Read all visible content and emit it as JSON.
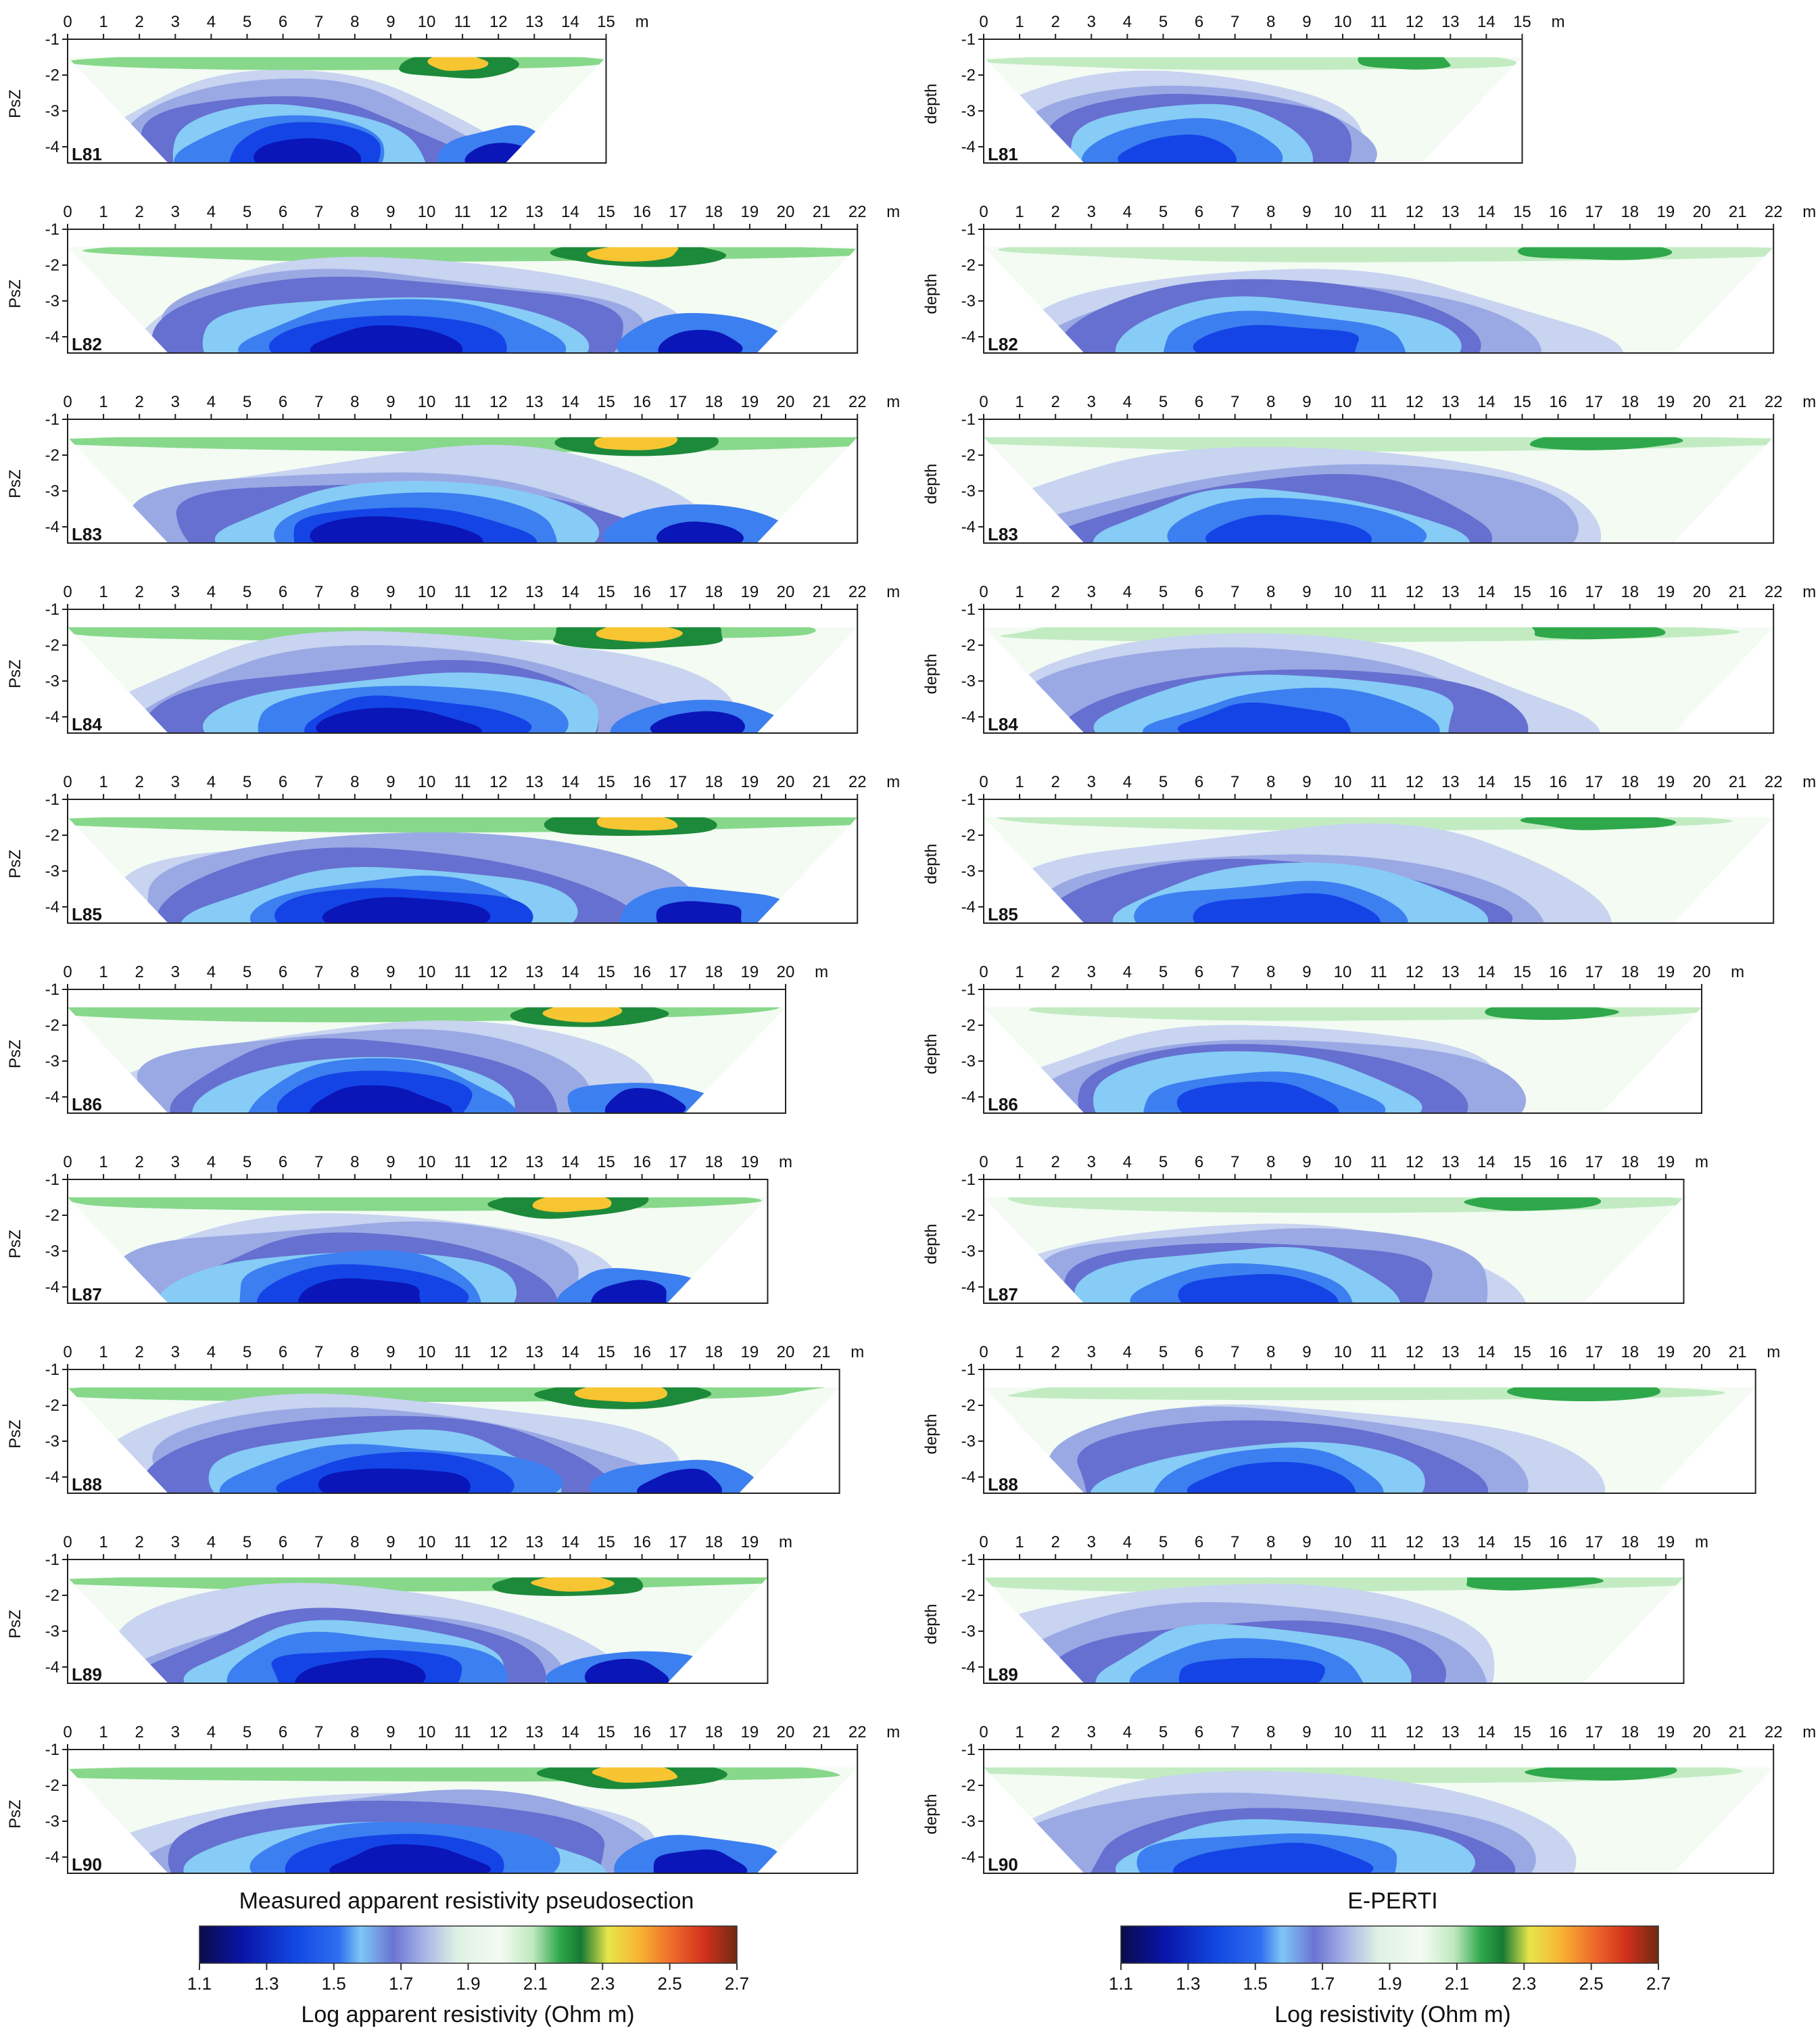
{
  "panel_titles": {
    "left": "Measured apparent resistivity pseudosection",
    "right": "E-PERTI"
  },
  "axes": {
    "left_ylabel": "PsZ",
    "right_ylabel": "depth",
    "x_unit": "m",
    "depth_ticks": [
      "-1",
      "-2",
      "-3",
      "-4"
    ]
  },
  "colorbars": {
    "left": {
      "label": "Log apparent resistivity (Ohm m)",
      "ticks": [
        "1.1",
        "1.3",
        "1.5",
        "1.7",
        "1.9",
        "2.1",
        "2.3",
        "2.5",
        "2.7"
      ]
    },
    "right": {
      "label": "Log resistivity (Ohm m)",
      "ticks": [
        "1.1",
        "1.3",
        "1.5",
        "1.7",
        "1.9",
        "2.1",
        "2.3",
        "2.5",
        "2.7"
      ]
    }
  },
  "colors": {
    "palette": [
      "#0b0b6e",
      "#0a16b8",
      "#1444e6",
      "#3c7ff0",
      "#86ccf6",
      "#6670d0",
      "#9aa9e4",
      "#c8d4f0",
      "#e7f5e8",
      "#f3fbf3",
      "#c2ebc2",
      "#87d88a",
      "#2ea84a",
      "#1c8a3a",
      "#e9e64a",
      "#f7c531",
      "#f39d35",
      "#ea4a26",
      "#c32c1a",
      "#7a2a16"
    ],
    "frame": "#222222",
    "text": "#111111"
  },
  "chart_data": [
    {
      "type": "heatmap",
      "panel": "measured",
      "line": "L81",
      "xmax": 15,
      "xticks": [
        0,
        1,
        2,
        3,
        4,
        5,
        6,
        7,
        8,
        9,
        10,
        11,
        12,
        13,
        14,
        15
      ],
      "yticks": [
        -1,
        -2,
        -3,
        -4
      ],
      "ylabel": "PsZ",
      "xunit": "m"
    },
    {
      "type": "heatmap",
      "panel": "E-PERTI",
      "line": "L81",
      "xmax": 15,
      "xticks": [
        0,
        1,
        2,
        3,
        4,
        5,
        6,
        7,
        8,
        9,
        10,
        11,
        12,
        13,
        14,
        15
      ],
      "yticks": [
        -1,
        -2,
        -3,
        -4
      ],
      "ylabel": "depth",
      "xunit": "m"
    },
    {
      "type": "heatmap",
      "panel": "measured",
      "line": "L82",
      "xmax": 22,
      "xticks": [
        0,
        1,
        2,
        3,
        4,
        5,
        6,
        7,
        8,
        9,
        10,
        11,
        12,
        13,
        14,
        15,
        16,
        17,
        18,
        19,
        20,
        21,
        22
      ],
      "yticks": [
        -1,
        -2,
        -3,
        -4
      ],
      "ylabel": "PsZ",
      "xunit": "m"
    },
    {
      "type": "heatmap",
      "panel": "E-PERTI",
      "line": "L82",
      "xmax": 22,
      "xticks": [
        0,
        1,
        2,
        3,
        4,
        5,
        6,
        7,
        8,
        9,
        10,
        11,
        12,
        13,
        14,
        15,
        16,
        17,
        18,
        19,
        20,
        21,
        22
      ],
      "yticks": [
        -1,
        -2,
        -3,
        -4
      ],
      "ylabel": "depth",
      "xunit": "m"
    },
    {
      "type": "heatmap",
      "panel": "measured",
      "line": "L83",
      "xmax": 22,
      "xticks": [
        0,
        1,
        2,
        3,
        4,
        5,
        6,
        7,
        8,
        9,
        10,
        11,
        12,
        13,
        14,
        15,
        16,
        17,
        18,
        19,
        20,
        21,
        22
      ],
      "yticks": [
        -1,
        -2,
        -3,
        -4
      ],
      "ylabel": "PsZ",
      "xunit": "m"
    },
    {
      "type": "heatmap",
      "panel": "E-PERTI",
      "line": "L83",
      "xmax": 22,
      "xticks": [
        0,
        1,
        2,
        3,
        4,
        5,
        6,
        7,
        8,
        9,
        10,
        11,
        12,
        13,
        14,
        15,
        16,
        17,
        18,
        19,
        20,
        21,
        22
      ],
      "yticks": [
        -1,
        -2,
        -3,
        -4
      ],
      "ylabel": "depth",
      "xunit": "m"
    },
    {
      "type": "heatmap",
      "panel": "measured",
      "line": "L84",
      "xmax": 22,
      "xticks": [
        0,
        1,
        2,
        3,
        4,
        5,
        6,
        7,
        8,
        9,
        10,
        11,
        12,
        13,
        14,
        15,
        16,
        17,
        18,
        19,
        20,
        21,
        22
      ],
      "yticks": [
        -1,
        -2,
        -3,
        -4
      ],
      "ylabel": "PsZ",
      "xunit": "m"
    },
    {
      "type": "heatmap",
      "panel": "E-PERTI",
      "line": "L84",
      "xmax": 22,
      "xticks": [
        0,
        1,
        2,
        3,
        4,
        5,
        6,
        7,
        8,
        9,
        10,
        11,
        12,
        13,
        14,
        15,
        16,
        17,
        18,
        19,
        20,
        21,
        22
      ],
      "yticks": [
        -1,
        -2,
        -3,
        -4
      ],
      "ylabel": "depth",
      "xunit": "m"
    },
    {
      "type": "heatmap",
      "panel": "measured",
      "line": "L85",
      "xmax": 22,
      "xticks": [
        0,
        1,
        2,
        3,
        4,
        5,
        6,
        7,
        8,
        9,
        10,
        11,
        12,
        13,
        14,
        15,
        16,
        17,
        18,
        19,
        20,
        21,
        22
      ],
      "yticks": [
        -1,
        -2,
        -3,
        -4
      ],
      "ylabel": "PsZ",
      "xunit": "m"
    },
    {
      "type": "heatmap",
      "panel": "E-PERTI",
      "line": "L85",
      "xmax": 22,
      "xticks": [
        0,
        1,
        2,
        3,
        4,
        5,
        6,
        7,
        8,
        9,
        10,
        11,
        12,
        13,
        14,
        15,
        16,
        17,
        18,
        19,
        20,
        21,
        22
      ],
      "yticks": [
        -1,
        -2,
        -3,
        -4
      ],
      "ylabel": "depth",
      "xunit": "m"
    },
    {
      "type": "heatmap",
      "panel": "measured",
      "line": "L86",
      "xmax": 20,
      "xticks": [
        0,
        1,
        2,
        3,
        4,
        5,
        6,
        7,
        8,
        9,
        10,
        11,
        12,
        13,
        14,
        15,
        16,
        17,
        18,
        19,
        20
      ],
      "yticks": [
        -1,
        -2,
        -3,
        -4
      ],
      "ylabel": "PsZ",
      "xunit": "m"
    },
    {
      "type": "heatmap",
      "panel": "E-PERTI",
      "line": "L86",
      "xmax": 20,
      "xticks": [
        0,
        1,
        2,
        3,
        4,
        5,
        6,
        7,
        8,
        9,
        10,
        11,
        12,
        13,
        14,
        15,
        16,
        17,
        18,
        19,
        20
      ],
      "yticks": [
        -1,
        -2,
        -3,
        -4
      ],
      "ylabel": "depth",
      "xunit": "m"
    },
    {
      "type": "heatmap",
      "panel": "measured",
      "line": "L87",
      "xmax": 19.5,
      "xticks": [
        0,
        1,
        2,
        3,
        4,
        5,
        6,
        7,
        8,
        9,
        10,
        11,
        12,
        13,
        14,
        15,
        16,
        17,
        18,
        19
      ],
      "yticks": [
        -1,
        -2,
        -3,
        -4
      ],
      "ylabel": "PsZ",
      "xunit": "m"
    },
    {
      "type": "heatmap",
      "panel": "E-PERTI",
      "line": "L87",
      "xmax": 19.5,
      "xticks": [
        0,
        1,
        2,
        3,
        4,
        5,
        6,
        7,
        8,
        9,
        10,
        11,
        12,
        13,
        14,
        15,
        16,
        17,
        18,
        19
      ],
      "yticks": [
        -1,
        -2,
        -3,
        -4
      ],
      "ylabel": "depth",
      "xunit": "m"
    },
    {
      "type": "heatmap",
      "panel": "measured",
      "line": "L88",
      "xmax": 21.5,
      "xticks": [
        0,
        1,
        2,
        3,
        4,
        5,
        6,
        7,
        8,
        9,
        10,
        11,
        12,
        13,
        14,
        15,
        16,
        17,
        18,
        19,
        20,
        21
      ],
      "yticks": [
        -1,
        -2,
        -3,
        -4
      ],
      "ylabel": "PsZ",
      "xunit": "m"
    },
    {
      "type": "heatmap",
      "panel": "E-PERTI",
      "line": "L88",
      "xmax": 21.5,
      "xticks": [
        0,
        1,
        2,
        3,
        4,
        5,
        6,
        7,
        8,
        9,
        10,
        11,
        12,
        13,
        14,
        15,
        16,
        17,
        18,
        19,
        20,
        21
      ],
      "yticks": [
        -1,
        -2,
        -3,
        -4
      ],
      "ylabel": "depth",
      "xunit": "m"
    },
    {
      "type": "heatmap",
      "panel": "measured",
      "line": "L89",
      "xmax": 19.5,
      "xticks": [
        0,
        1,
        2,
        3,
        4,
        5,
        6,
        7,
        8,
        9,
        10,
        11,
        12,
        13,
        14,
        15,
        16,
        17,
        18,
        19
      ],
      "yticks": [
        -1,
        -2,
        -3,
        -4
      ],
      "ylabel": "PsZ",
      "xunit": "m"
    },
    {
      "type": "heatmap",
      "panel": "E-PERTI",
      "line": "L89",
      "xmax": 19.5,
      "xticks": [
        0,
        1,
        2,
        3,
        4,
        5,
        6,
        7,
        8,
        9,
        10,
        11,
        12,
        13,
        14,
        15,
        16,
        17,
        18,
        19
      ],
      "yticks": [
        -1,
        -2,
        -3,
        -4
      ],
      "ylabel": "depth",
      "xunit": "m"
    },
    {
      "type": "heatmap",
      "panel": "measured",
      "line": "L90",
      "xmax": 22,
      "xticks": [
        0,
        1,
        2,
        3,
        4,
        5,
        6,
        7,
        8,
        9,
        10,
        11,
        12,
        13,
        14,
        15,
        16,
        17,
        18,
        19,
        20,
        21,
        22
      ],
      "yticks": [
        -1,
        -2,
        -3,
        -4
      ],
      "ylabel": "PsZ",
      "xunit": "m"
    },
    {
      "type": "heatmap",
      "panel": "E-PERTI",
      "line": "L90",
      "xmax": 22,
      "xticks": [
        0,
        1,
        2,
        3,
        4,
        5,
        6,
        7,
        8,
        9,
        10,
        11,
        12,
        13,
        14,
        15,
        16,
        17,
        18,
        19,
        20,
        21,
        22
      ],
      "yticks": [
        -1,
        -2,
        -3,
        -4
      ],
      "ylabel": "depth",
      "xunit": "m"
    }
  ]
}
